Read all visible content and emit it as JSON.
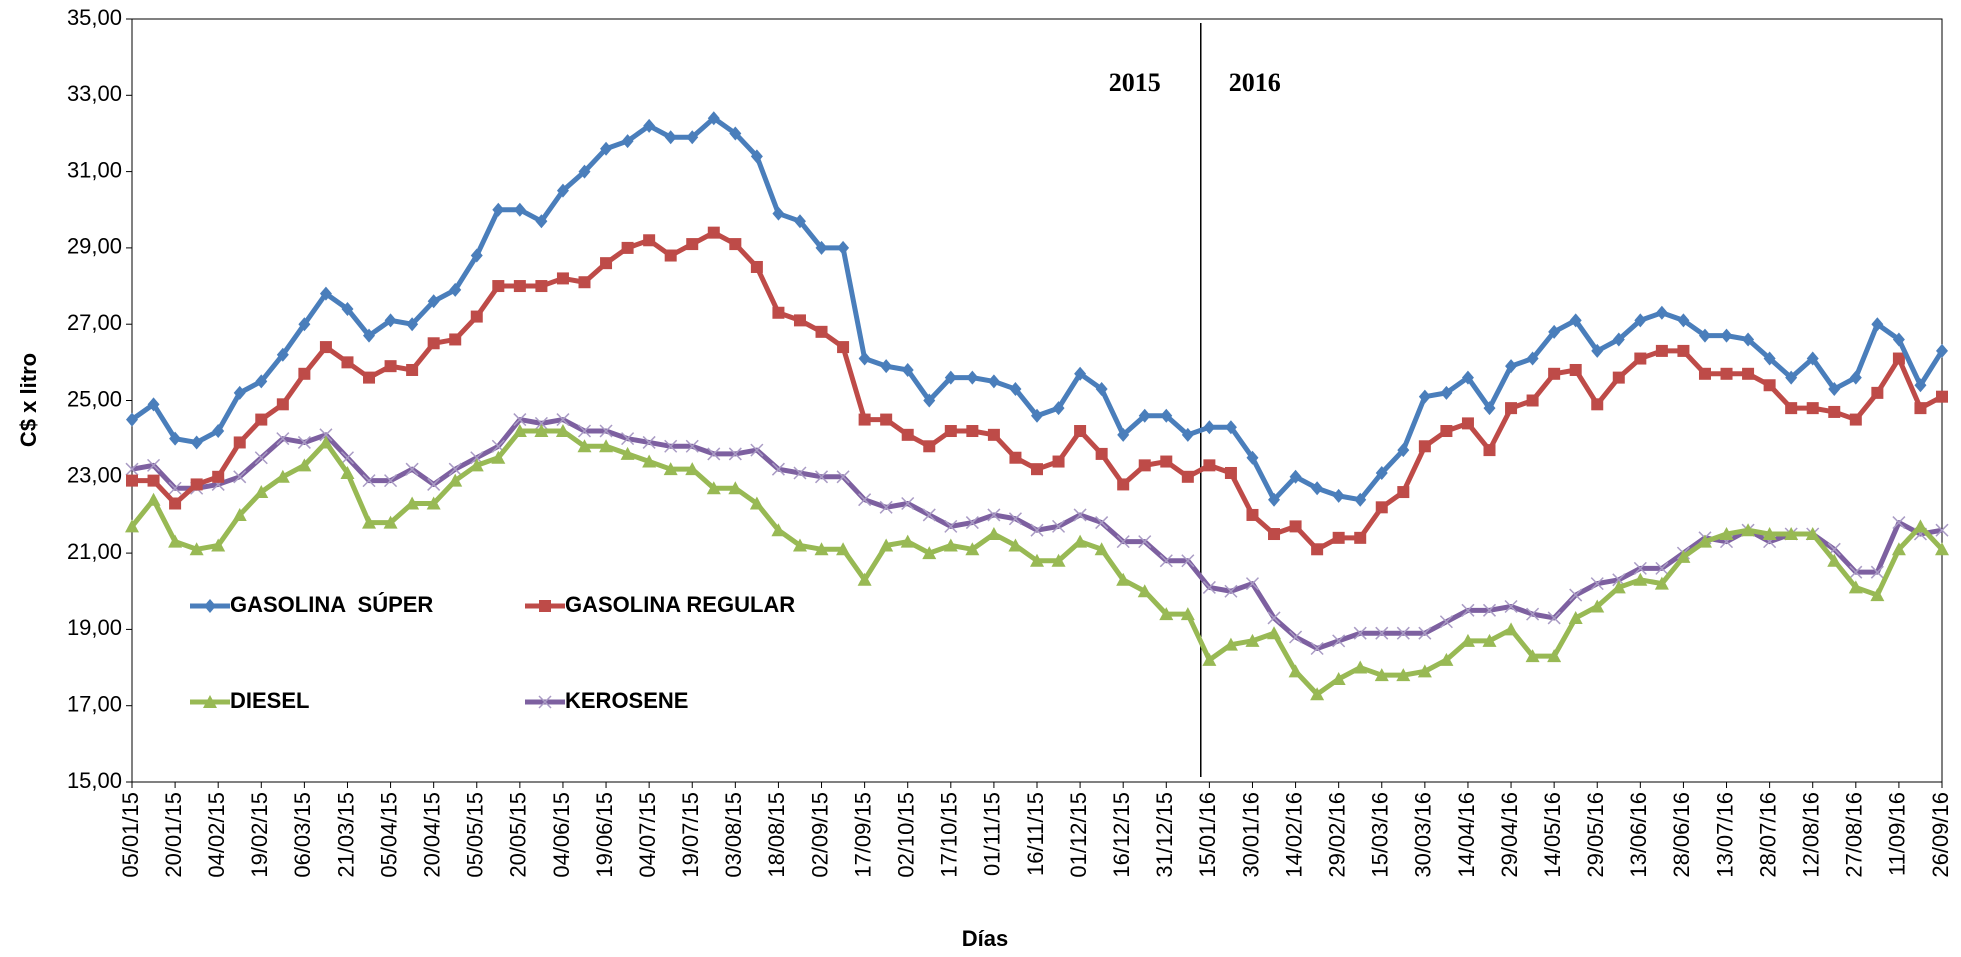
{
  "chart_data": {
    "type": "line",
    "y_label": "C$ x litro",
    "x_label": "Días",
    "categories": [
      "05/01/15",
      null,
      "20/01/15",
      null,
      "04/02/15",
      null,
      "19/02/15",
      null,
      "06/03/15",
      null,
      "21/03/15",
      null,
      "05/04/15",
      null,
      "20/04/15",
      null,
      "05/05/15",
      null,
      "20/05/15",
      null,
      "04/06/15",
      null,
      "19/06/15",
      null,
      "04/07/15",
      null,
      "19/07/15",
      null,
      "03/08/15",
      null,
      "18/08/15",
      null,
      "02/09/15",
      null,
      "17/09/15",
      null,
      "02/10/15",
      null,
      "17/10/15",
      null,
      "01/11/15",
      null,
      "16/11/15",
      null,
      "01/12/15",
      null,
      "16/12/15",
      null,
      "31/12/15",
      null,
      "15/01/16",
      null,
      "30/01/16",
      null,
      "14/02/16",
      null,
      "29/02/16",
      null,
      "15/03/16",
      null,
      "30/03/16",
      null,
      "14/04/16",
      null,
      "29/04/16",
      null,
      "14/05/16",
      null,
      "29/05/16",
      null,
      "13/06/16",
      null,
      "28/06/16",
      null,
      "13/07/16",
      null,
      "28/07/16",
      null,
      "12/08/16",
      null,
      "27/08/16",
      null,
      "11/09/16",
      null,
      "26/09/16"
    ],
    "series": [
      {
        "name": "GASOLINA  SÚPER",
        "color": "#4a7ebb",
        "marker": "diamond",
        "values": [
          24.5,
          24.9,
          24.0,
          23.9,
          24.2,
          25.2,
          25.5,
          26.2,
          27.0,
          27.8,
          27.4,
          26.7,
          27.1,
          27.0,
          27.6,
          27.9,
          28.8,
          30.0,
          30.0,
          29.7,
          30.5,
          31.0,
          31.6,
          31.8,
          32.2,
          31.9,
          31.9,
          32.4,
          32.0,
          31.4,
          29.9,
          29.7,
          29.0,
          29.0,
          26.1,
          25.9,
          25.8,
          25.0,
          25.6,
          25.6,
          25.5,
          25.3,
          24.6,
          24.8,
          25.7,
          25.3,
          24.1,
          24.6,
          24.6,
          24.1,
          24.3,
          24.3,
          23.5,
          22.4,
          23.0,
          22.7,
          22.5,
          22.4,
          23.1,
          23.7,
          25.1,
          25.2,
          25.6,
          24.8,
          25.9,
          26.1,
          26.8,
          27.1,
          26.3,
          26.6,
          27.1,
          27.3,
          27.1,
          26.7,
          26.7,
          26.6,
          26.1,
          25.6,
          26.1,
          25.3,
          25.6,
          27.0,
          26.6,
          25.4,
          26.3
        ]
      },
      {
        "name": "GASOLINA REGULAR",
        "color": "#be4b48",
        "marker": "square",
        "values": [
          22.9,
          22.9,
          22.3,
          22.8,
          23.0,
          23.9,
          24.5,
          24.9,
          25.7,
          26.4,
          26.0,
          25.6,
          25.9,
          25.8,
          26.5,
          26.6,
          27.2,
          28.0,
          28.0,
          28.0,
          28.2,
          28.1,
          28.6,
          29.0,
          29.2,
          28.8,
          29.1,
          29.4,
          29.1,
          28.5,
          27.3,
          27.1,
          26.8,
          26.4,
          24.5,
          24.5,
          24.1,
          23.8,
          24.2,
          24.2,
          24.1,
          23.5,
          23.2,
          23.4,
          24.2,
          23.6,
          22.8,
          23.3,
          23.4,
          23.0,
          23.3,
          23.1,
          22.0,
          21.5,
          21.7,
          21.1,
          21.4,
          21.4,
          22.2,
          22.6,
          23.8,
          24.2,
          24.4,
          23.7,
          24.8,
          25.0,
          25.7,
          25.8,
          24.9,
          25.6,
          26.1,
          26.3,
          26.3,
          25.7,
          25.7,
          25.7,
          25.4,
          24.8,
          24.8,
          24.7,
          24.5,
          25.2,
          26.1,
          24.8,
          25.1
        ]
      },
      {
        "name": "DIESEL",
        "color": "#98b954",
        "marker": "triangle",
        "values": [
          21.7,
          22.4,
          21.3,
          21.1,
          21.2,
          22.0,
          22.6,
          23.0,
          23.3,
          23.9,
          23.1,
          21.8,
          21.8,
          22.3,
          22.3,
          22.9,
          23.3,
          23.5,
          24.2,
          24.2,
          24.2,
          23.8,
          23.8,
          23.6,
          23.4,
          23.2,
          23.2,
          22.7,
          22.7,
          22.3,
          21.6,
          21.2,
          21.1,
          21.1,
          20.3,
          21.2,
          21.3,
          21.0,
          21.2,
          21.1,
          21.5,
          21.2,
          20.8,
          20.8,
          21.3,
          21.1,
          20.3,
          20.0,
          19.4,
          19.4,
          18.2,
          18.6,
          18.7,
          18.9,
          17.9,
          17.3,
          17.7,
          18.0,
          17.8,
          17.8,
          17.9,
          18.2,
          18.7,
          18.7,
          19.0,
          18.3,
          18.3,
          19.3,
          19.6,
          20.1,
          20.3,
          20.2,
          20.9,
          21.3,
          21.5,
          21.6,
          21.5,
          21.5,
          21.5,
          20.8,
          20.1,
          19.9,
          21.1,
          21.7,
          21.1
        ]
      },
      {
        "name": "KEROSENE",
        "color": "#7d60a0",
        "marker": "x",
        "values": [
          23.2,
          23.3,
          22.7,
          22.7,
          22.8,
          23.0,
          23.5,
          24.0,
          23.9,
          24.1,
          23.5,
          22.9,
          22.9,
          23.2,
          22.8,
          23.2,
          23.5,
          23.8,
          24.5,
          24.4,
          24.5,
          24.2,
          24.2,
          24.0,
          23.9,
          23.8,
          23.8,
          23.6,
          23.6,
          23.7,
          23.2,
          23.1,
          23.0,
          23.0,
          22.4,
          22.2,
          22.3,
          22.0,
          21.7,
          21.8,
          22.0,
          21.9,
          21.6,
          21.7,
          22.0,
          21.8,
          21.3,
          21.3,
          20.8,
          20.8,
          20.1,
          20.0,
          20.2,
          19.3,
          18.8,
          18.5,
          18.7,
          18.9,
          18.9,
          18.9,
          18.9,
          19.2,
          19.5,
          19.5,
          19.6,
          19.4,
          19.3,
          19.9,
          20.2,
          20.3,
          20.6,
          20.6,
          21.0,
          21.4,
          21.3,
          21.6,
          21.3,
          21.5,
          21.5,
          21.1,
          20.5,
          20.5,
          21.8,
          21.5,
          21.6
        ]
      }
    ],
    "annotations": [
      "2015",
      "2016"
    ],
    "ylim": [
      15,
      35
    ],
    "yticks": [
      {
        "value": 15,
        "label": "15,00"
      },
      {
        "value": 17,
        "label": "17,00"
      },
      {
        "value": 19,
        "label": "19,00"
      },
      {
        "value": 21,
        "label": "21,00"
      },
      {
        "value": 23,
        "label": "23,00"
      },
      {
        "value": 25,
        "label": "25,00"
      },
      {
        "value": 27,
        "label": "27,00"
      },
      {
        "value": 29,
        "label": "29,00"
      },
      {
        "value": 31,
        "label": "31,00"
      },
      {
        "value": 33,
        "label": "33,00"
      },
      {
        "value": 35,
        "label": "35,00"
      }
    ],
    "grid": false
  }
}
